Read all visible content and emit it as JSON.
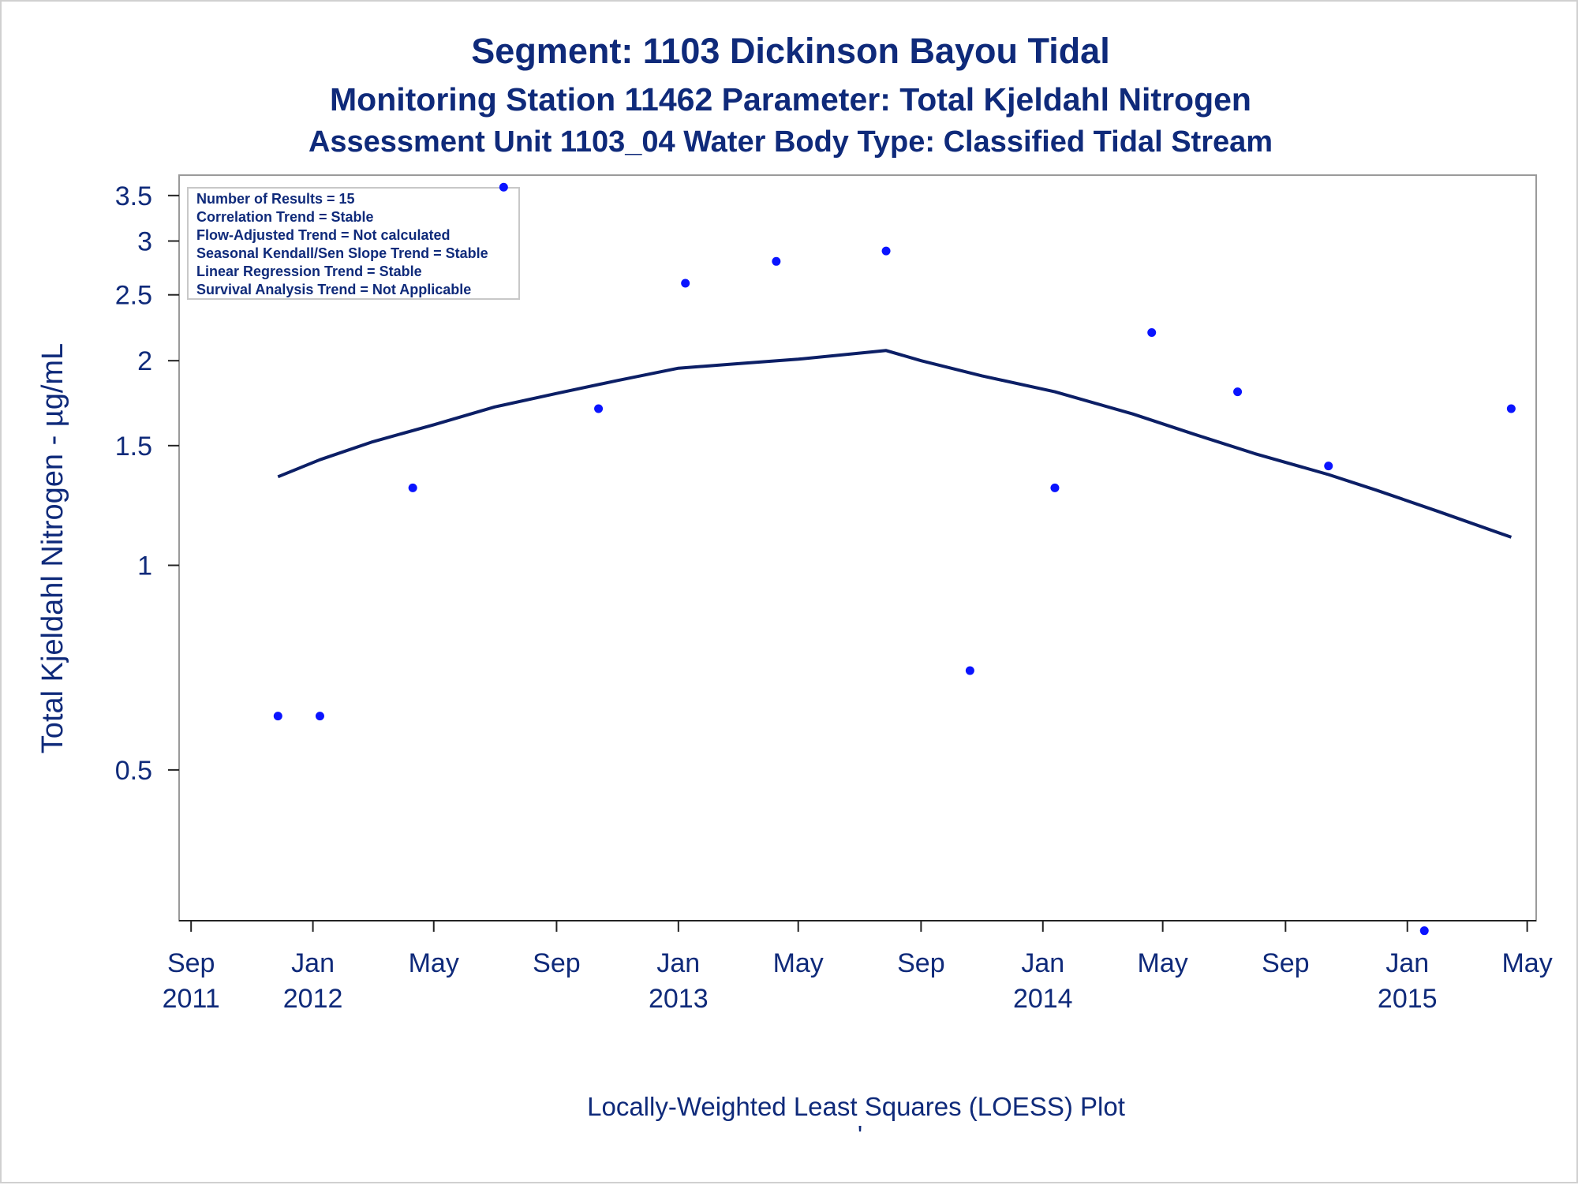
{
  "title": "Segment: 1103  Dickinson Bayou Tidal",
  "subtitle": "Monitoring Station 11462 Parameter: Total Kjeldahl Nitrogen",
  "subtitle2": "Assessment Unit 1103_04   Water Body Type: Classified Tidal Stream",
  "footnote": "Locally-Weighted Least Squares (LOESS) Plot",
  "footnote_mark": "'",
  "stats_box": [
    "Number of Results = 15",
    "Correlation Trend = Stable",
    "Flow-Adjusted Trend = Not calculated",
    "Seasonal Kendall/Sen Slope Trend = Stable",
    "Linear Regression Trend = Stable",
    "Survival Analysis Trend = Not Applicable"
  ],
  "colors": {
    "text": "#0f2a7a",
    "points": "#0a14ff",
    "loess_line": "#0c1f66",
    "frame": "#9a9a9a"
  },
  "chart_data": {
    "type": "scatter",
    "title": "Segment: 1103  Dickinson Bayou Tidal",
    "xlabel": "",
    "ylabel": "Total Kjeldahl Nitrogen -  µg/mL",
    "y_scale": "log",
    "xlim": [
      "2011-08-20",
      "2015-05-10"
    ],
    "ylim": [
      0.3,
      3.75
    ],
    "grid": false,
    "x_ticks": [
      {
        "date": "2011-09-01",
        "label": "Sep",
        "year": "2011"
      },
      {
        "date": "2012-01-01",
        "label": "Jan",
        "year": "2012"
      },
      {
        "date": "2012-05-01",
        "label": "May",
        "year": ""
      },
      {
        "date": "2012-09-01",
        "label": "Sep",
        "year": ""
      },
      {
        "date": "2013-01-01",
        "label": "Jan",
        "year": "2013"
      },
      {
        "date": "2013-05-01",
        "label": "May",
        "year": ""
      },
      {
        "date": "2013-09-01",
        "label": "Sep",
        "year": ""
      },
      {
        "date": "2014-01-01",
        "label": "Jan",
        "year": "2014"
      },
      {
        "date": "2014-05-01",
        "label": "May",
        "year": ""
      },
      {
        "date": "2014-09-01",
        "label": "Sep",
        "year": ""
      },
      {
        "date": "2015-01-01",
        "label": "Jan",
        "year": "2015"
      },
      {
        "date": "2015-05-01",
        "label": "May",
        "year": ""
      }
    ],
    "y_ticks": [
      0.5,
      1,
      1.5,
      2,
      2.5,
      3,
      3.5
    ],
    "series": [
      {
        "kind": "points",
        "points": [
          {
            "x": "2011-11-27",
            "y": 0.6
          },
          {
            "x": "2012-01-08",
            "y": 0.6
          },
          {
            "x": "2012-04-10",
            "y": 1.3
          },
          {
            "x": "2012-07-10",
            "y": 3.6
          },
          {
            "x": "2012-10-13",
            "y": 1.7
          },
          {
            "x": "2013-01-08",
            "y": 2.6
          },
          {
            "x": "2013-04-09",
            "y": 2.8
          },
          {
            "x": "2013-07-28",
            "y": 2.9
          },
          {
            "x": "2013-10-20",
            "y": 0.7
          },
          {
            "x": "2014-01-13",
            "y": 1.3
          },
          {
            "x": "2014-04-20",
            "y": 2.2
          },
          {
            "x": "2014-07-15",
            "y": 1.8
          },
          {
            "x": "2014-10-14",
            "y": 1.4
          },
          {
            "x": "2015-01-18",
            "y": 0.29
          },
          {
            "x": "2015-04-15",
            "y": 1.7
          }
        ]
      },
      {
        "kind": "loess",
        "points": [
          {
            "x": "2011-11-27",
            "y": 1.35
          },
          {
            "x": "2012-01-08",
            "y": 1.43
          },
          {
            "x": "2012-03-01",
            "y": 1.52
          },
          {
            "x": "2012-05-01",
            "y": 1.61
          },
          {
            "x": "2012-07-01",
            "y": 1.71
          },
          {
            "x": "2012-09-01",
            "y": 1.79
          },
          {
            "x": "2012-11-01",
            "y": 1.87
          },
          {
            "x": "2013-01-01",
            "y": 1.95
          },
          {
            "x": "2013-03-01",
            "y": 1.98
          },
          {
            "x": "2013-05-01",
            "y": 2.01
          },
          {
            "x": "2013-07-28",
            "y": 2.07
          },
          {
            "x": "2013-09-01",
            "y": 2.0
          },
          {
            "x": "2013-11-01",
            "y": 1.9
          },
          {
            "x": "2014-01-13",
            "y": 1.8
          },
          {
            "x": "2014-04-01",
            "y": 1.67
          },
          {
            "x": "2014-06-01",
            "y": 1.56
          },
          {
            "x": "2014-08-01",
            "y": 1.46
          },
          {
            "x": "2014-10-14",
            "y": 1.36
          },
          {
            "x": "2014-12-01",
            "y": 1.29
          },
          {
            "x": "2015-02-01",
            "y": 1.2
          },
          {
            "x": "2015-04-15",
            "y": 1.1
          }
        ]
      }
    ]
  }
}
